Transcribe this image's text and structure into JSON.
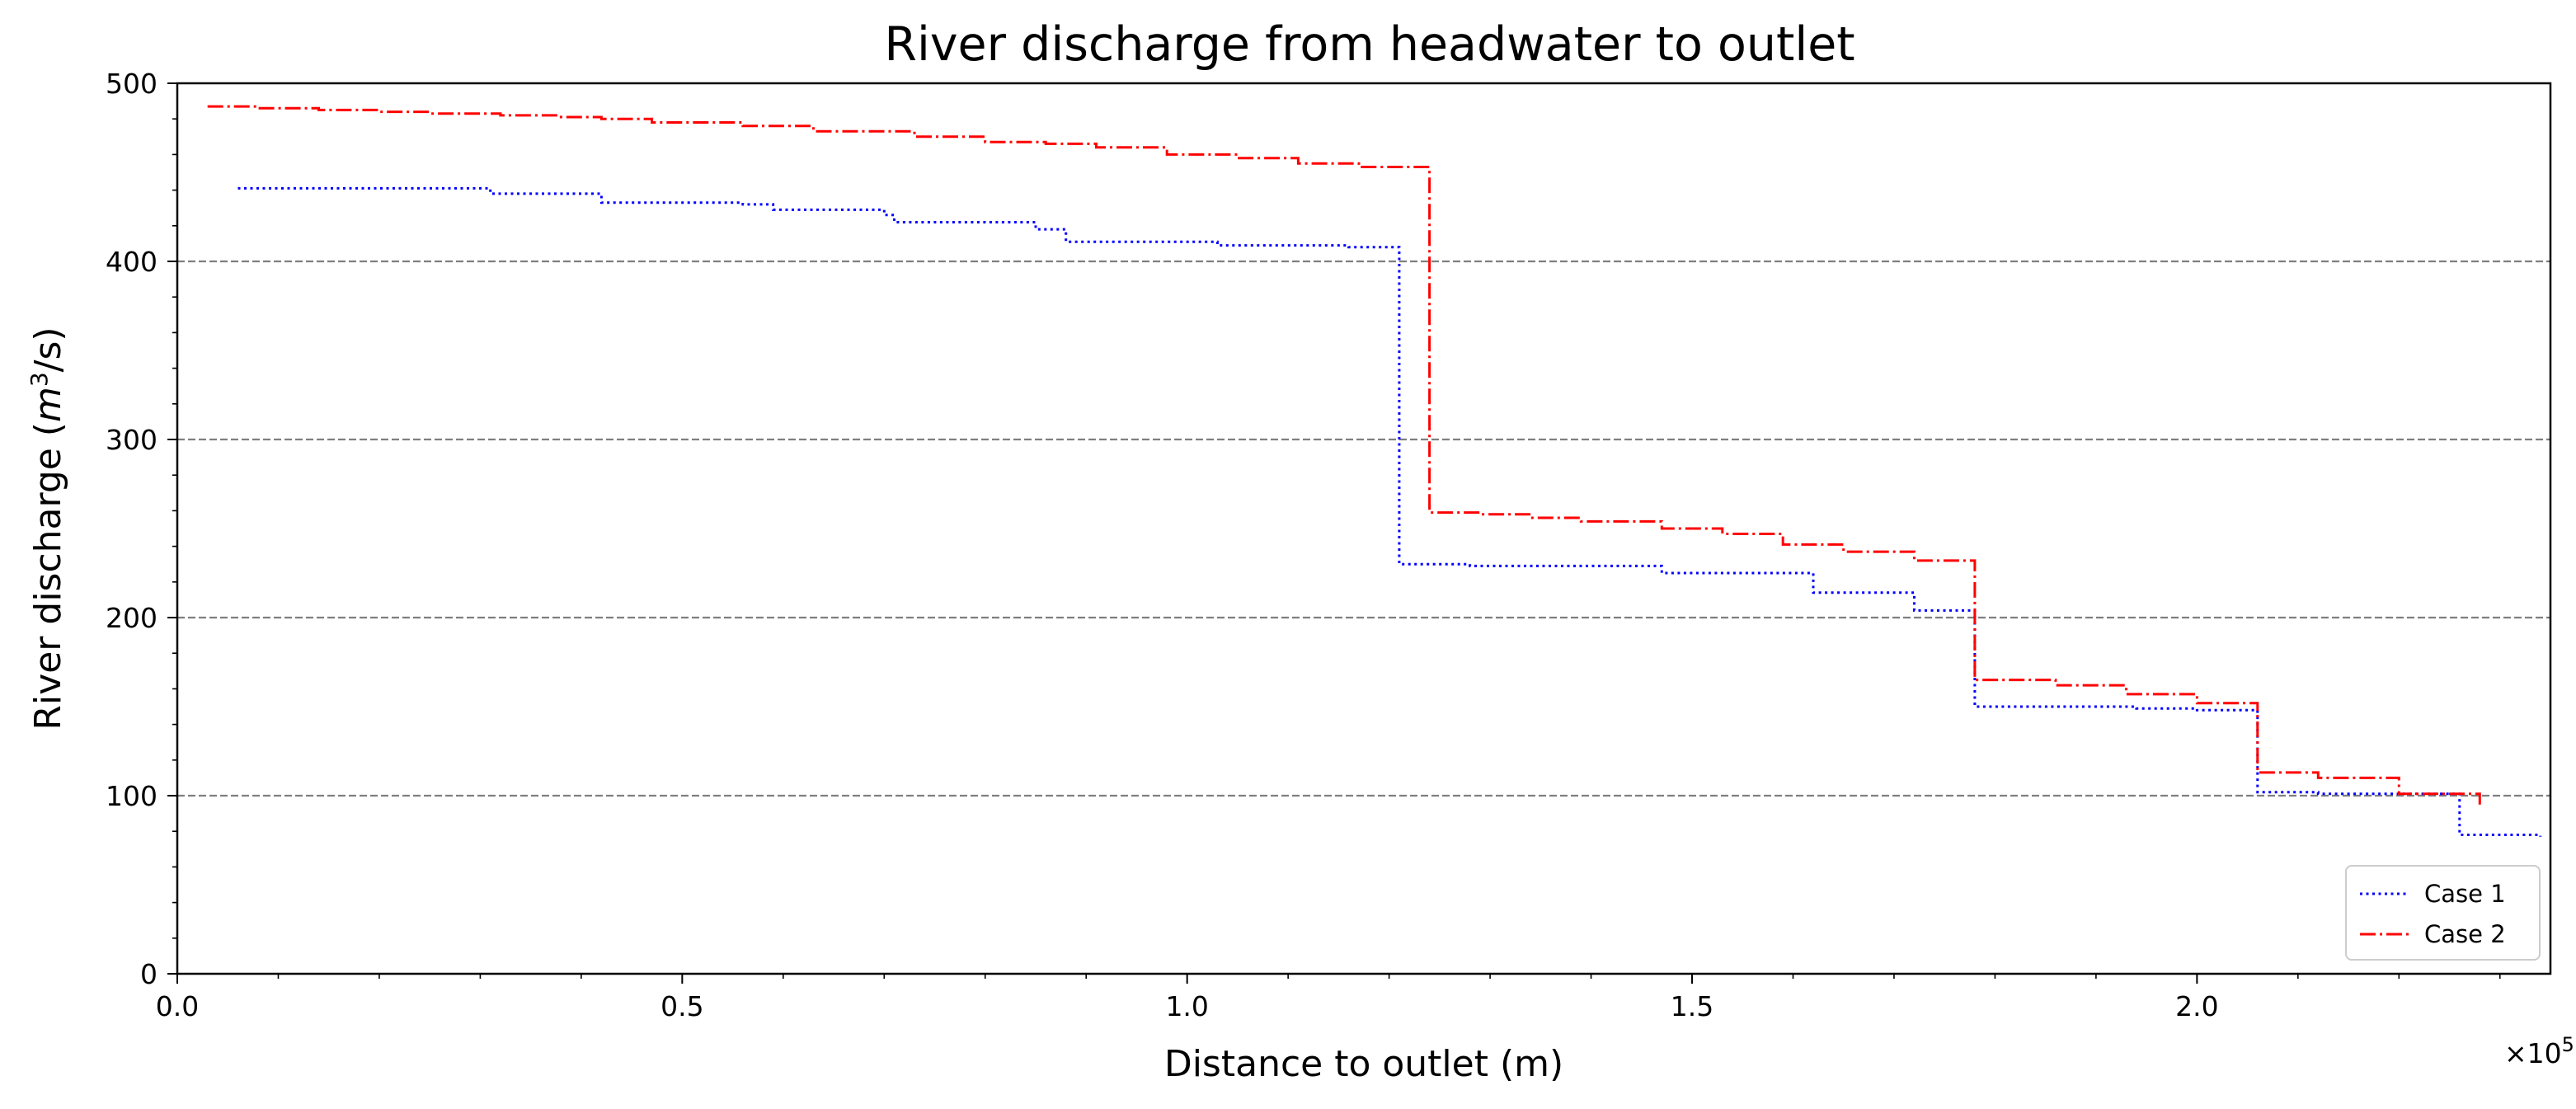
{
  "chart_data": {
    "type": "line",
    "title": "River discharge from headwater to outlet",
    "xlabel": "Distance to outlet (m)",
    "ylabel": "River discharge (m³/s)",
    "ylabel_parts": {
      "pre": "River discharge (",
      "m": "m",
      "exp": "3",
      "post": "/s)"
    },
    "x_offset_text": {
      "base": "×10",
      "exp": "5"
    },
    "xlim": [
      0,
      235000
    ],
    "ylim": [
      0,
      500
    ],
    "x_ticks": [
      0,
      50000,
      100000,
      150000,
      200000
    ],
    "x_tick_labels": [
      "0.0",
      "0.5",
      "1.0",
      "1.5",
      "2.0"
    ],
    "y_ticks": [
      0,
      100,
      200,
      300,
      400,
      500
    ],
    "y_tick_labels": [
      "0",
      "100",
      "200",
      "300",
      "400",
      "500"
    ],
    "y_grid": [
      100,
      200,
      300,
      400
    ],
    "legend_position": "lower-right",
    "series": [
      {
        "name": "Case 1",
        "color": "#0000ff",
        "style": "dotted",
        "x": [
          6000,
          17000,
          31000,
          37000,
          42000,
          56000,
          59000,
          66000,
          70000,
          71000,
          85000,
          88000,
          103000,
          116000,
          121000,
          121000,
          128000,
          147000,
          162000,
          172000,
          178000,
          178000,
          186000,
          194000,
          200000,
          206000,
          206000,
          212000,
          226000,
          226000,
          234000
        ],
        "y": [
          441,
          441,
          438,
          438,
          433,
          432,
          429,
          429,
          426,
          422,
          418,
          411,
          409,
          408,
          407,
          230,
          229,
          225,
          214,
          204,
          203,
          150,
          150,
          149,
          148,
          143,
          102,
          101,
          100,
          78,
          77
        ]
      },
      {
        "name": "Case 2",
        "color": "#ff0000",
        "style": "dashdot",
        "x": [
          3000,
          8000,
          14000,
          20000,
          25000,
          32000,
          38000,
          42000,
          47000,
          56000,
          63000,
          73000,
          80000,
          86000,
          91000,
          98000,
          105000,
          111000,
          117000,
          124000,
          124000,
          129000,
          134000,
          139000,
          147000,
          153000,
          159000,
          165000,
          172000,
          178000,
          178000,
          186000,
          193000,
          200000,
          206000,
          206000,
          212000,
          220000,
          228000
        ],
        "y": [
          487,
          486,
          485,
          484,
          483,
          482,
          481,
          480,
          478,
          476,
          473,
          470,
          467,
          466,
          464,
          460,
          458,
          455,
          453,
          452,
          259,
          258,
          256,
          254,
          250,
          247,
          241,
          237,
          232,
          231,
          165,
          162,
          157,
          152,
          151,
          113,
          110,
          101,
          95
        ]
      }
    ]
  }
}
